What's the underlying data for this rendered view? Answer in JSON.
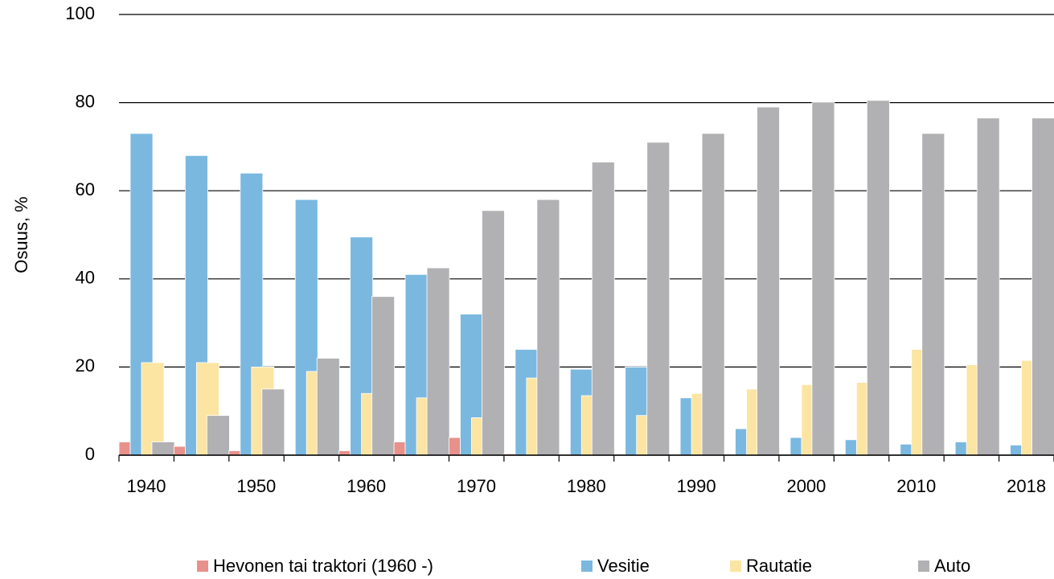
{
  "chart_data": {
    "type": "bar",
    "ylabel": "Osuus, %",
    "categories": [
      "1940",
      null,
      "1950",
      null,
      "1960",
      null,
      "1970",
      null,
      "1980",
      null,
      "1990",
      null,
      "2000",
      null,
      "2010",
      null,
      "2018"
    ],
    "series": [
      {
        "name": "Hevonen tai traktori (1960 -)",
        "color": "#e8918b",
        "values": [
          3,
          2,
          1,
          0,
          1,
          3,
          4,
          0.3,
          0.2,
          0,
          0,
          0,
          0,
          0,
          0,
          0,
          0
        ]
      },
      {
        "name": "Vesitie",
        "color": "#7ab8e0",
        "values": [
          73,
          68,
          64,
          58,
          49.5,
          41,
          32,
          24,
          19.5,
          20,
          13,
          6,
          4,
          3.5,
          2.5,
          3,
          2.3
        ]
      },
      {
        "name": "Rautatie",
        "color": "#fce5a2",
        "values": [
          21,
          21,
          20,
          19,
          14,
          13,
          8.5,
          17.5,
          13.5,
          9,
          14,
          15,
          16,
          16.5,
          24,
          20.5,
          21.5
        ]
      },
      {
        "name": "Auto",
        "color": "#b1b0b3",
        "values": [
          3,
          9,
          15,
          22,
          36,
          42.5,
          55.5,
          58,
          66.5,
          71,
          73,
          79,
          80,
          80.5,
          73,
          76.5,
          76.5
        ]
      }
    ],
    "ylim": [
      0,
      100
    ],
    "yticks": [
      0,
      20,
      40,
      60,
      80,
      100
    ],
    "grid": true,
    "legend": "bottom"
  }
}
